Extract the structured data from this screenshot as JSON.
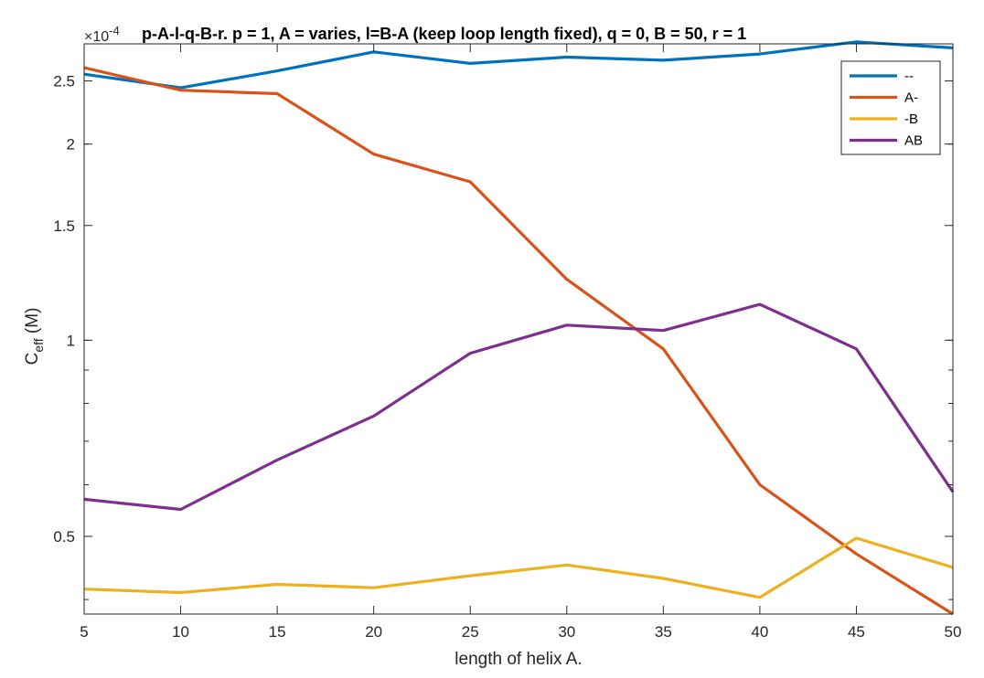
{
  "chart_data": {
    "type": "line",
    "title": "p-A-l-q-B-r.  p = 1, A = varies, l=B-A (keep loop length fixed), q = 0, B = 50, r  = 1",
    "exponent_label": "×10",
    "exponent_power": "-4",
    "xlabel": "length of helix A.",
    "ylabel_main": "C",
    "ylabel_sub": "eff",
    "ylabel_unit": " (M)",
    "y_scale": "log",
    "xlim": [
      5,
      50
    ],
    "ylim": [
      0.38,
      2.85
    ],
    "x_ticks": [
      5,
      10,
      15,
      20,
      25,
      30,
      35,
      40,
      45,
      50
    ],
    "x_tick_labels": [
      "5",
      "10",
      "15",
      "20",
      "25",
      "30",
      "35",
      "40",
      "45",
      "50"
    ],
    "y_ticks": [
      0.5,
      1,
      1.5,
      2,
      2.5
    ],
    "y_tick_labels": [
      "0.5",
      "1",
      "1.5",
      "2",
      "2.5"
    ],
    "legend_position": "top-right",
    "x": [
      5,
      10,
      15,
      20,
      25,
      30,
      35,
      40,
      45,
      50
    ],
    "series": [
      {
        "name": "--",
        "color": "#0072BD",
        "values": [
          2.56,
          2.44,
          2.59,
          2.77,
          2.66,
          2.72,
          2.69,
          2.75,
          2.87,
          2.81
        ]
      },
      {
        "name": "A-",
        "color": "#D95319",
        "values": [
          2.62,
          2.42,
          2.39,
          1.93,
          1.75,
          1.24,
          0.97,
          0.6,
          0.47,
          0.38
        ]
      },
      {
        "name": "-B",
        "color": "#EDB120",
        "values": [
          0.415,
          0.41,
          0.422,
          0.417,
          0.435,
          0.452,
          0.431,
          0.403,
          0.497,
          0.448
        ]
      },
      {
        "name": "AB",
        "color": "#7E2F8E",
        "values": [
          0.57,
          0.55,
          0.655,
          0.765,
          0.955,
          1.055,
          1.035,
          1.135,
          0.97,
          0.585
        ]
      }
    ]
  }
}
